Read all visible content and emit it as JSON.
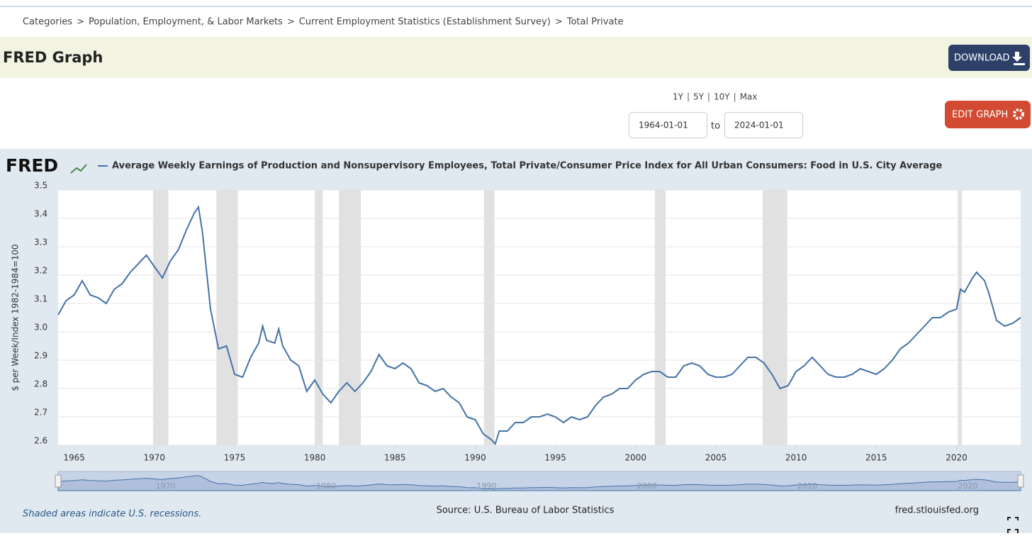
{
  "breadcrumb": {
    "items": [
      "Categories",
      "Population, Employment, & Labor Markets",
      "Current Employment Statistics (Establishment Survey)",
      "Total Private"
    ],
    "separator": ">"
  },
  "header": {
    "title": "FRED Graph",
    "download": "DOWNLOAD"
  },
  "range": {
    "periods": [
      "1Y",
      "5Y",
      "10Y",
      "Max"
    ],
    "separator": "|",
    "start": "1964-01-01",
    "to": "to",
    "end": "2024-01-01"
  },
  "edit": "EDIT GRAPH",
  "logo": "FRED",
  "footer": {
    "note": "Shaded areas indicate U.S. recessions.",
    "source": "Source: U.S. Bureau of Labor Statistics",
    "site": "fred.stlouisfed.org"
  },
  "chart_data": {
    "type": "line",
    "ylabel": "$ per Week/Index 1982-1984=100",
    "xlim": [
      1964,
      2024
    ],
    "xticks": [
      1965,
      1970,
      1975,
      1980,
      1985,
      1990,
      1995,
      2000,
      2005,
      2010,
      2015,
      2020
    ],
    "ylim": [
      2.6,
      3.5
    ],
    "yticks": [
      2.6,
      2.7,
      2.8,
      2.9,
      {
        "value": 3,
        "label": "3.0"
      },
      3.1,
      3.2,
      3.3,
      3.4,
      3.5
    ],
    "grid": true,
    "recessions": [
      [
        1969.92,
        1970.87
      ],
      [
        1973.87,
        1975.2
      ],
      [
        1980.0,
        1980.5
      ],
      [
        1981.5,
        1982.87
      ],
      [
        1990.55,
        1991.2
      ],
      [
        2001.2,
        2001.87
      ],
      [
        2007.92,
        2009.45
      ],
      [
        2020.08,
        2020.33
      ]
    ],
    "x": [
      1964,
      1964.5,
      1965,
      1965.5,
      1966,
      1966.5,
      1967,
      1967.5,
      1968,
      1968.5,
      1969,
      1969.5,
      1970,
      1970.5,
      1971,
      1971.5,
      1972,
      1972.5,
      1972.75,
      1973,
      1973.5,
      1974,
      1974.5,
      1975,
      1975.5,
      1976,
      1976.5,
      1976.75,
      1977,
      1977.5,
      1977.75,
      1978,
      1978.5,
      1979,
      1979.5,
      1980,
      1980.5,
      1981,
      1981.5,
      1982,
      1982.5,
      1983,
      1983.5,
      1984,
      1984.5,
      1985,
      1985.5,
      1986,
      1986.5,
      1987,
      1987.5,
      1988,
      1988.5,
      1989,
      1989.5,
      1990,
      1990.5,
      1991,
      1991.25,
      1991.5,
      1992,
      1992.5,
      1993,
      1993.5,
      1994,
      1994.5,
      1995,
      1995.5,
      1996,
      1996.5,
      1997,
      1997.5,
      1998,
      1998.5,
      1999,
      1999.5,
      2000,
      2000.5,
      2001,
      2001.5,
      2002,
      2002.5,
      2003,
      2003.5,
      2004,
      2004.5,
      2005,
      2005.5,
      2006,
      2006.5,
      2007,
      2007.5,
      2008,
      2008.5,
      2009,
      2009.5,
      2010,
      2010.5,
      2011,
      2011.5,
      2012,
      2012.5,
      2013,
      2013.5,
      2014,
      2014.5,
      2015,
      2015.5,
      2016,
      2016.5,
      2017,
      2017.5,
      2018,
      2018.5,
      2019,
      2019.5,
      2020,
      2020.25,
      2020.5,
      2021,
      2021.25,
      2021.75,
      2022,
      2022.5,
      2023,
      2023.5,
      2024
    ],
    "series": [
      {
        "name": "Average Weekly Earnings of Production and Nonsupervisory Employees, Total Private/Consumer Price Index for All Urban Consumers: Food in U.S. City Average",
        "color": "#4572a7",
        "values": [
          3.06,
          3.11,
          3.13,
          3.18,
          3.13,
          3.12,
          3.1,
          3.15,
          3.17,
          3.21,
          3.24,
          3.27,
          3.23,
          3.19,
          3.25,
          3.29,
          3.36,
          3.42,
          3.44,
          3.35,
          3.08,
          2.94,
          2.95,
          2.85,
          2.84,
          2.91,
          2.96,
          3.02,
          2.97,
          2.96,
          3.01,
          2.95,
          2.9,
          2.88,
          2.79,
          2.83,
          2.78,
          2.75,
          2.79,
          2.82,
          2.79,
          2.82,
          2.86,
          2.92,
          2.88,
          2.87,
          2.89,
          2.87,
          2.82,
          2.81,
          2.79,
          2.8,
          2.77,
          2.75,
          2.7,
          2.69,
          2.64,
          2.62,
          2.605,
          2.65,
          2.65,
          2.68,
          2.68,
          2.7,
          2.7,
          2.71,
          2.7,
          2.68,
          2.7,
          2.69,
          2.7,
          2.74,
          2.77,
          2.78,
          2.8,
          2.8,
          2.83,
          2.85,
          2.86,
          2.86,
          2.84,
          2.84,
          2.88,
          2.89,
          2.88,
          2.85,
          2.84,
          2.84,
          2.85,
          2.88,
          2.91,
          2.91,
          2.89,
          2.85,
          2.8,
          2.81,
          2.86,
          2.88,
          2.91,
          2.88,
          2.85,
          2.84,
          2.84,
          2.85,
          2.87,
          2.86,
          2.85,
          2.87,
          2.9,
          2.94,
          2.96,
          2.99,
          3.02,
          3.05,
          3.05,
          3.07,
          3.08,
          3.15,
          3.14,
          3.19,
          3.21,
          3.18,
          3.14,
          3.04,
          3.02,
          3.03,
          3.05
        ]
      }
    ]
  }
}
